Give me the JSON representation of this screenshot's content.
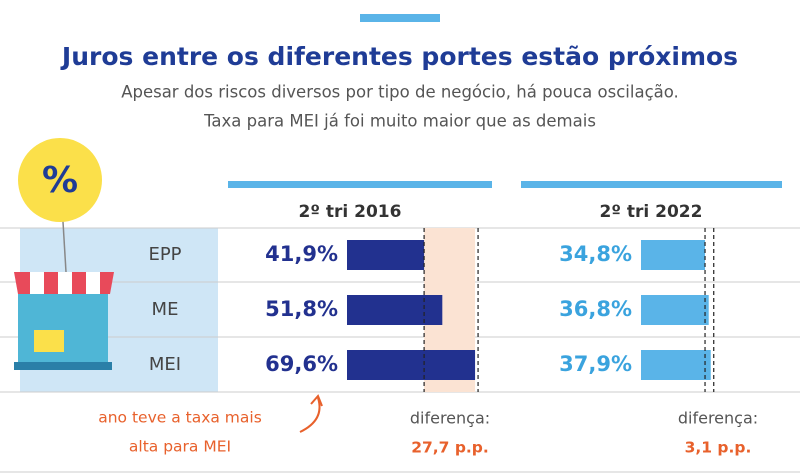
{
  "title": "Juros entre os diferentes portes estão próximos",
  "subtitle": [
    "Apesar dos riscos diversos por tipo de negócio, há pouca oscilação.",
    "Taxa para MEI já foi muito maior que as demais"
  ],
  "categories": [
    "EPP",
    "ME",
    "MEI"
  ],
  "chart_data": [
    {
      "type": "bar",
      "title": "2º tri 2016",
      "values": [
        41.9,
        51.8,
        69.6
      ],
      "value_labels": [
        "41,9%",
        "51,8%",
        "69,6%"
      ],
      "color": "#22318f",
      "label_color": "#22318f",
      "highlight_range": true,
      "annotation": [
        "ano teve a taxa mais",
        "alta para MEI"
      ],
      "difference_title": "diferença:",
      "difference": "27,7 p.p."
    },
    {
      "type": "bar",
      "title": "2º tri 2022",
      "values": [
        34.8,
        36.8,
        37.9
      ],
      "value_labels": [
        "34,8%",
        "36,8%",
        "37,9%"
      ],
      "color": "#5ab4e8",
      "label_color": "#3aa3de",
      "highlight_range": false,
      "difference_title": "diferença:",
      "difference": "3,1 p.p."
    }
  ]
}
